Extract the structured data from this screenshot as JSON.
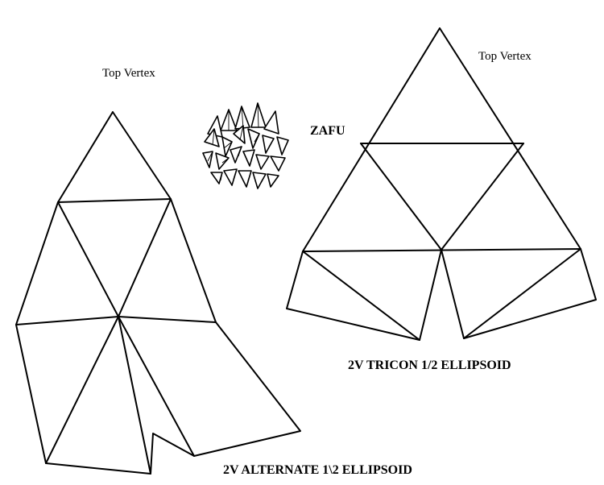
{
  "labels": {
    "top_vertex_left": "Top Vertex",
    "top_vertex_right": "Top Vertex",
    "zafu": "ZAFU",
    "tricon_caption": "2V TRICON 1/2 ELLIPSOID",
    "alternate_caption": "2V ALTERNATE 1\\2 ELLIPSOID"
  }
}
